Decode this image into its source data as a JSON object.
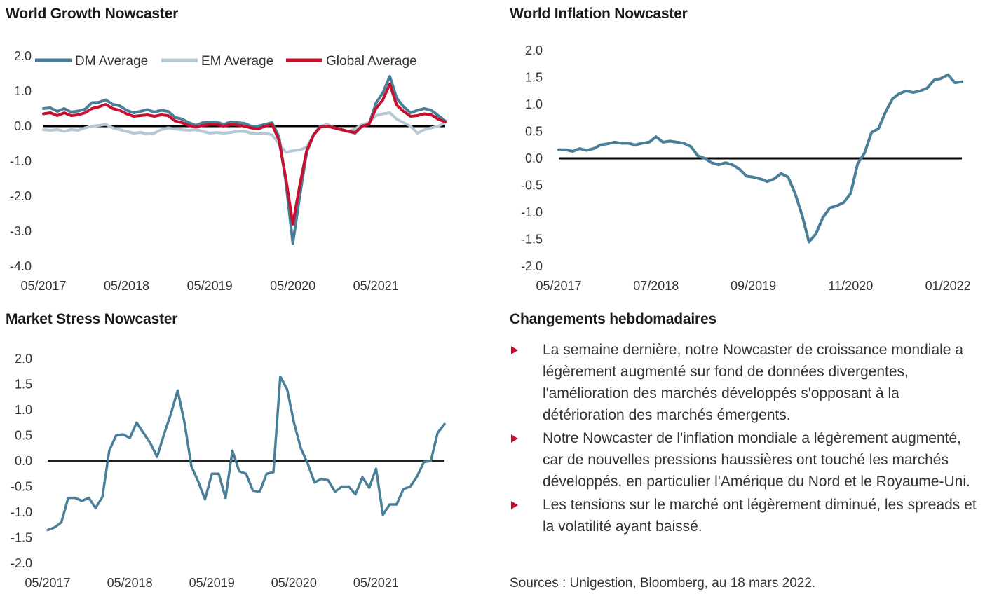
{
  "colors": {
    "dm": "#4a7f99",
    "em": "#b5c9d4",
    "global": "#c8102e",
    "single": "#4a7f99",
    "zero": "#000000",
    "bullet": "#c8102e"
  },
  "notes": {
    "title": "Changements hebdomadaires",
    "bullets": [
      "La semaine dernière, notre Nowcaster de croissance mondiale a légèrement augmenté sur fond de données divergentes, l'amélioration des marchés développés s'opposant à la détérioration des marchés émergents.",
      "Notre Nowcaster de l'inflation mondiale a légèrement augmenté, car de nouvelles pressions haussières ont touché les marchés développés, en particulier l'Amérique du Nord et le Royaume-Uni.",
      "Les tensions sur le marché ont légèrement diminué, les spreads et la volatilité ayant baissé."
    ],
    "sources": "Sources : Unigestion, Bloomberg, au 18 mars 2022."
  },
  "chart_data": [
    {
      "id": "growth",
      "type": "line",
      "title": "World Growth Nowcaster",
      "grid": false,
      "legend": "top",
      "ylim": [
        -4.0,
        2.0
      ],
      "yticks": [
        2.0,
        1.0,
        0.0,
        -1.0,
        -2.0,
        -3.0,
        -4.0
      ],
      "ytick_labels": [
        "2.0",
        "1.0",
        "0.0",
        "-1.0",
        "-2.0",
        "-3.0",
        "-4.0"
      ],
      "x_start": "2017-05",
      "x_step_months": 1,
      "xtick_labels": [
        "05/2017",
        "05/2018",
        "05/2019",
        "05/2020",
        "05/2021"
      ],
      "xtick_index": [
        0,
        12,
        24,
        36,
        48
      ],
      "series": [
        {
          "name": "DM Average",
          "color_key": "dm",
          "values": [
            0.5,
            0.52,
            0.42,
            0.5,
            0.4,
            0.43,
            0.48,
            0.67,
            0.68,
            0.75,
            0.62,
            0.58,
            0.45,
            0.38,
            0.42,
            0.47,
            0.4,
            0.45,
            0.42,
            0.25,
            0.2,
            0.1,
            0.02,
            0.1,
            0.12,
            0.12,
            0.05,
            0.12,
            0.1,
            0.08,
            0.0,
            0.0,
            0.05,
            0.1,
            -0.3,
            -1.6,
            -3.35,
            -2.0,
            -0.75,
            -0.25,
            0.0,
            0.0,
            -0.05,
            -0.1,
            -0.15,
            -0.2,
            0.0,
            0.05,
            0.65,
            0.95,
            1.42,
            0.8,
            0.55,
            0.38,
            0.45,
            0.5,
            0.45,
            0.3,
            0.15
          ]
        },
        {
          "name": "EM Average",
          "color_key": "em",
          "values": [
            -0.1,
            -0.12,
            -0.1,
            -0.15,
            -0.1,
            -0.12,
            -0.05,
            0.0,
            0.02,
            0.05,
            -0.05,
            -0.1,
            -0.15,
            -0.2,
            -0.18,
            -0.22,
            -0.2,
            -0.1,
            -0.05,
            -0.08,
            -0.1,
            -0.12,
            -0.1,
            -0.15,
            -0.2,
            -0.18,
            -0.2,
            -0.18,
            -0.15,
            -0.15,
            -0.2,
            -0.2,
            -0.2,
            -0.25,
            -0.5,
            -0.75,
            -0.7,
            -0.68,
            -0.6,
            -0.25,
            0.0,
            0.05,
            -0.05,
            -0.1,
            -0.15,
            -0.08,
            0.05,
            0.1,
            0.3,
            0.35,
            0.38,
            0.2,
            0.1,
            0.0,
            -0.2,
            -0.1,
            -0.05,
            0.0,
            0.1
          ]
        },
        {
          "name": "Global Average",
          "color_key": "global",
          "values": [
            0.35,
            0.38,
            0.3,
            0.38,
            0.3,
            0.32,
            0.38,
            0.5,
            0.55,
            0.62,
            0.5,
            0.45,
            0.35,
            0.28,
            0.3,
            0.32,
            0.28,
            0.32,
            0.3,
            0.15,
            0.1,
            0.02,
            -0.02,
            0.02,
            0.05,
            0.05,
            0.0,
            0.05,
            0.03,
            0.0,
            -0.05,
            -0.08,
            0.0,
            0.05,
            -0.4,
            -1.5,
            -2.8,
            -1.7,
            -0.7,
            -0.25,
            -0.02,
            0.0,
            -0.05,
            -0.1,
            -0.15,
            -0.18,
            0.0,
            0.05,
            0.5,
            0.75,
            1.2,
            0.6,
            0.42,
            0.28,
            0.3,
            0.35,
            0.32,
            0.2,
            0.12
          ]
        }
      ]
    },
    {
      "id": "inflation",
      "type": "line",
      "title": "World Inflation Nowcaster",
      "grid": false,
      "ylim": [
        -2.0,
        2.0
      ],
      "yticks": [
        2.0,
        1.5,
        1.0,
        0.5,
        0.0,
        -0.5,
        -1.0,
        -1.5,
        -2.0
      ],
      "ytick_labels": [
        "2.0",
        "1.5",
        "1.0",
        "0.5",
        "0.0",
        "-0.5",
        "-1.0",
        "-1.5",
        "-2.0"
      ],
      "x_start": "2017-05",
      "x_step_months": 1,
      "xtick_labels": [
        "05/2017",
        "07/2018",
        "09/2019",
        "11/2020",
        "01/2022"
      ],
      "xtick_index": [
        0,
        14,
        28,
        42,
        56
      ],
      "series": [
        {
          "name": "",
          "color_key": "single",
          "values": [
            0.16,
            0.16,
            0.13,
            0.18,
            0.15,
            0.18,
            0.25,
            0.27,
            0.3,
            0.28,
            0.28,
            0.25,
            0.28,
            0.3,
            0.4,
            0.3,
            0.32,
            0.3,
            0.28,
            0.22,
            0.05,
            0.0,
            -0.08,
            -0.12,
            -0.08,
            -0.12,
            -0.2,
            -0.33,
            -0.35,
            -0.38,
            -0.43,
            -0.38,
            -0.28,
            -0.35,
            -0.65,
            -1.05,
            -1.55,
            -1.4,
            -1.1,
            -0.92,
            -0.88,
            -0.82,
            -0.65,
            -0.1,
            0.1,
            0.48,
            0.55,
            0.85,
            1.1,
            1.2,
            1.25,
            1.22,
            1.25,
            1.3,
            1.45,
            1.48,
            1.55,
            1.4,
            1.42
          ]
        }
      ]
    },
    {
      "id": "stress",
      "type": "line",
      "title": "Market Stress Nowcaster",
      "grid": false,
      "ylim": [
        -2.0,
        2.0
      ],
      "yticks": [
        2.0,
        1.5,
        1.0,
        0.5,
        0.0,
        -0.5,
        -1.0,
        -1.5,
        -2.0
      ],
      "ytick_labels": [
        "2.0",
        "1.5",
        "1.0",
        "0.5",
        "0.0",
        "-0.5",
        "-1.0",
        "-1.5",
        "-2.0"
      ],
      "x_start": "2017-05",
      "x_step_months": 1,
      "xtick_labels": [
        "05/2017",
        "05/2018",
        "05/2019",
        "05/2020",
        "05/2021"
      ],
      "xtick_index": [
        0,
        12,
        24,
        36,
        48
      ],
      "series": [
        {
          "name": "",
          "color_key": "single",
          "values": [
            -1.35,
            -1.3,
            -1.2,
            -0.72,
            -0.72,
            -0.78,
            -0.72,
            -0.92,
            -0.7,
            0.2,
            0.5,
            0.52,
            0.45,
            0.75,
            0.55,
            0.35,
            0.08,
            0.52,
            0.92,
            1.38,
            0.75,
            -0.1,
            -0.4,
            -0.75,
            -0.25,
            -0.25,
            -0.72,
            0.2,
            -0.2,
            -0.25,
            -0.58,
            -0.6,
            -0.25,
            -0.22,
            1.65,
            1.4,
            0.75,
            0.25,
            -0.05,
            -0.42,
            -0.35,
            -0.38,
            -0.6,
            -0.5,
            -0.5,
            -0.65,
            -0.32,
            -0.52,
            -0.15,
            -1.05,
            -0.85,
            -0.85,
            -0.55,
            -0.5,
            -0.3,
            -0.02,
            0.0,
            0.55,
            0.72
          ]
        }
      ]
    }
  ]
}
